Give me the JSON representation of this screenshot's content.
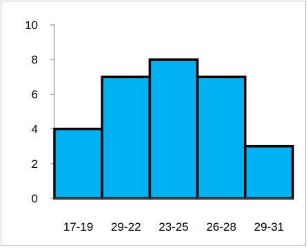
{
  "chart_data": {
    "type": "bar",
    "categories": [
      "17-19",
      "29-22",
      "23-25",
      "26-28",
      "29-31"
    ],
    "values": [
      4,
      7,
      8,
      7,
      3
    ],
    "title": "",
    "xlabel": "",
    "ylabel": "",
    "ylim": [
      0,
      10
    ],
    "yticks": [
      0,
      2,
      4,
      6,
      8,
      10
    ],
    "grid": false,
    "legend": "none",
    "bar_color": "#00B0F0",
    "bar_edge_color": "#000000"
  }
}
